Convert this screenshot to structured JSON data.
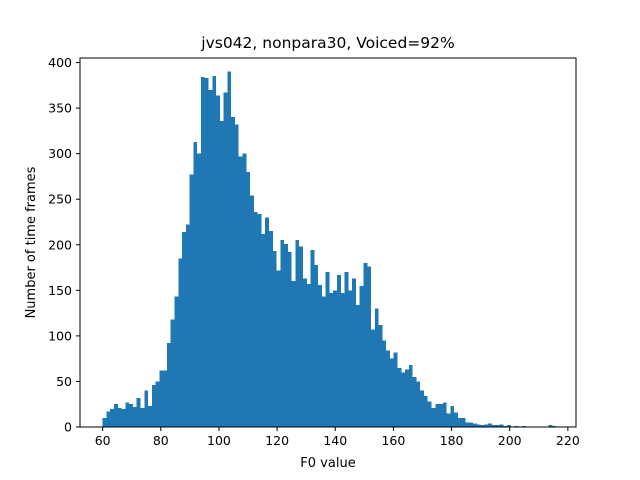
{
  "chart_data": {
    "type": "bar",
    "title": "jvs042, nonpara30, Voiced=92%",
    "xlabel": "F0 value",
    "ylabel": "Number of time frames",
    "xlim": [
      52.2,
      222.8
    ],
    "ylim": [
      0,
      405
    ],
    "xticks": [
      60,
      80,
      100,
      120,
      140,
      160,
      180,
      200,
      220
    ],
    "yticks": [
      0,
      50,
      100,
      150,
      200,
      250,
      300,
      350,
      400
    ],
    "grid": false,
    "color": "#1f77b4",
    "bin_width": 1.3,
    "bins": [
      {
        "x": 60.0,
        "y": 10
      },
      {
        "x": 61.3,
        "y": 17
      },
      {
        "x": 62.6,
        "y": 20
      },
      {
        "x": 63.9,
        "y": 25
      },
      {
        "x": 65.2,
        "y": 21
      },
      {
        "x": 66.5,
        "y": 20
      },
      {
        "x": 67.8,
        "y": 27
      },
      {
        "x": 69.1,
        "y": 25
      },
      {
        "x": 70.4,
        "y": 22
      },
      {
        "x": 71.7,
        "y": 32
      },
      {
        "x": 73.0,
        "y": 21
      },
      {
        "x": 74.3,
        "y": 40
      },
      {
        "x": 75.6,
        "y": 23
      },
      {
        "x": 76.9,
        "y": 46
      },
      {
        "x": 78.2,
        "y": 50
      },
      {
        "x": 79.5,
        "y": 62
      },
      {
        "x": 80.8,
        "y": 62
      },
      {
        "x": 82.1,
        "y": 92
      },
      {
        "x": 83.4,
        "y": 118
      },
      {
        "x": 84.7,
        "y": 143
      },
      {
        "x": 86.0,
        "y": 185
      },
      {
        "x": 87.3,
        "y": 214
      },
      {
        "x": 88.6,
        "y": 222
      },
      {
        "x": 89.9,
        "y": 277
      },
      {
        "x": 91.2,
        "y": 313
      },
      {
        "x": 92.5,
        "y": 300
      },
      {
        "x": 93.8,
        "y": 384
      },
      {
        "x": 95.1,
        "y": 383
      },
      {
        "x": 96.4,
        "y": 370
      },
      {
        "x": 97.7,
        "y": 385
      },
      {
        "x": 99.0,
        "y": 364
      },
      {
        "x": 100.3,
        "y": 336
      },
      {
        "x": 101.6,
        "y": 367
      },
      {
        "x": 102.9,
        "y": 390
      },
      {
        "x": 104.2,
        "y": 340
      },
      {
        "x": 105.5,
        "y": 332
      },
      {
        "x": 106.8,
        "y": 297
      },
      {
        "x": 108.1,
        "y": 300
      },
      {
        "x": 109.4,
        "y": 280
      },
      {
        "x": 110.7,
        "y": 254
      },
      {
        "x": 112.0,
        "y": 236
      },
      {
        "x": 113.3,
        "y": 234
      },
      {
        "x": 114.6,
        "y": 212
      },
      {
        "x": 115.9,
        "y": 230
      },
      {
        "x": 117.2,
        "y": 215
      },
      {
        "x": 118.5,
        "y": 193
      },
      {
        "x": 119.8,
        "y": 172
      },
      {
        "x": 121.1,
        "y": 205
      },
      {
        "x": 122.4,
        "y": 201
      },
      {
        "x": 123.7,
        "y": 192
      },
      {
        "x": 125.0,
        "y": 160
      },
      {
        "x": 126.3,
        "y": 205
      },
      {
        "x": 127.6,
        "y": 198
      },
      {
        "x": 128.9,
        "y": 163
      },
      {
        "x": 130.2,
        "y": 157
      },
      {
        "x": 131.5,
        "y": 194
      },
      {
        "x": 132.8,
        "y": 178
      },
      {
        "x": 134.1,
        "y": 156
      },
      {
        "x": 135.4,
        "y": 143
      },
      {
        "x": 136.7,
        "y": 170
      },
      {
        "x": 138.0,
        "y": 147
      },
      {
        "x": 139.3,
        "y": 150
      },
      {
        "x": 140.6,
        "y": 167
      },
      {
        "x": 141.9,
        "y": 147
      },
      {
        "x": 143.2,
        "y": 170
      },
      {
        "x": 144.5,
        "y": 150
      },
      {
        "x": 145.8,
        "y": 163
      },
      {
        "x": 147.1,
        "y": 134
      },
      {
        "x": 148.4,
        "y": 155
      },
      {
        "x": 149.7,
        "y": 180
      },
      {
        "x": 151.0,
        "y": 176
      },
      {
        "x": 152.3,
        "y": 107
      },
      {
        "x": 153.6,
        "y": 130
      },
      {
        "x": 154.9,
        "y": 112
      },
      {
        "x": 156.2,
        "y": 95
      },
      {
        "x": 157.5,
        "y": 84
      },
      {
        "x": 158.8,
        "y": 75
      },
      {
        "x": 160.1,
        "y": 82
      },
      {
        "x": 161.4,
        "y": 65
      },
      {
        "x": 162.7,
        "y": 60
      },
      {
        "x": 164.0,
        "y": 63
      },
      {
        "x": 165.3,
        "y": 68
      },
      {
        "x": 166.6,
        "y": 55
      },
      {
        "x": 167.9,
        "y": 50
      },
      {
        "x": 169.2,
        "y": 40
      },
      {
        "x": 170.5,
        "y": 34
      },
      {
        "x": 171.8,
        "y": 28
      },
      {
        "x": 173.1,
        "y": 21
      },
      {
        "x": 174.4,
        "y": 25
      },
      {
        "x": 175.7,
        "y": 25
      },
      {
        "x": 177.0,
        "y": 27
      },
      {
        "x": 178.3,
        "y": 15
      },
      {
        "x": 179.6,
        "y": 23
      },
      {
        "x": 180.9,
        "y": 16
      },
      {
        "x": 182.2,
        "y": 10
      },
      {
        "x": 183.5,
        "y": 10
      },
      {
        "x": 184.8,
        "y": 5
      },
      {
        "x": 186.1,
        "y": 5
      },
      {
        "x": 187.4,
        "y": 4
      },
      {
        "x": 188.7,
        "y": 3
      },
      {
        "x": 190.0,
        "y": 2
      },
      {
        "x": 191.3,
        "y": 3
      },
      {
        "x": 192.6,
        "y": 4
      },
      {
        "x": 193.9,
        "y": 2
      },
      {
        "x": 195.2,
        "y": 2
      },
      {
        "x": 196.5,
        "y": 3
      },
      {
        "x": 197.8,
        "y": 1
      },
      {
        "x": 199.1,
        "y": 2
      },
      {
        "x": 200.4,
        "y": 0
      },
      {
        "x": 201.7,
        "y": 1
      },
      {
        "x": 203.0,
        "y": 0
      },
      {
        "x": 204.3,
        "y": 1
      },
      {
        "x": 205.6,
        "y": 0
      },
      {
        "x": 206.9,
        "y": 0
      },
      {
        "x": 208.2,
        "y": 0
      },
      {
        "x": 209.5,
        "y": 0
      },
      {
        "x": 210.8,
        "y": 0
      },
      {
        "x": 212.1,
        "y": 0
      },
      {
        "x": 213.4,
        "y": 2
      },
      {
        "x": 214.7,
        "y": 1
      }
    ]
  }
}
